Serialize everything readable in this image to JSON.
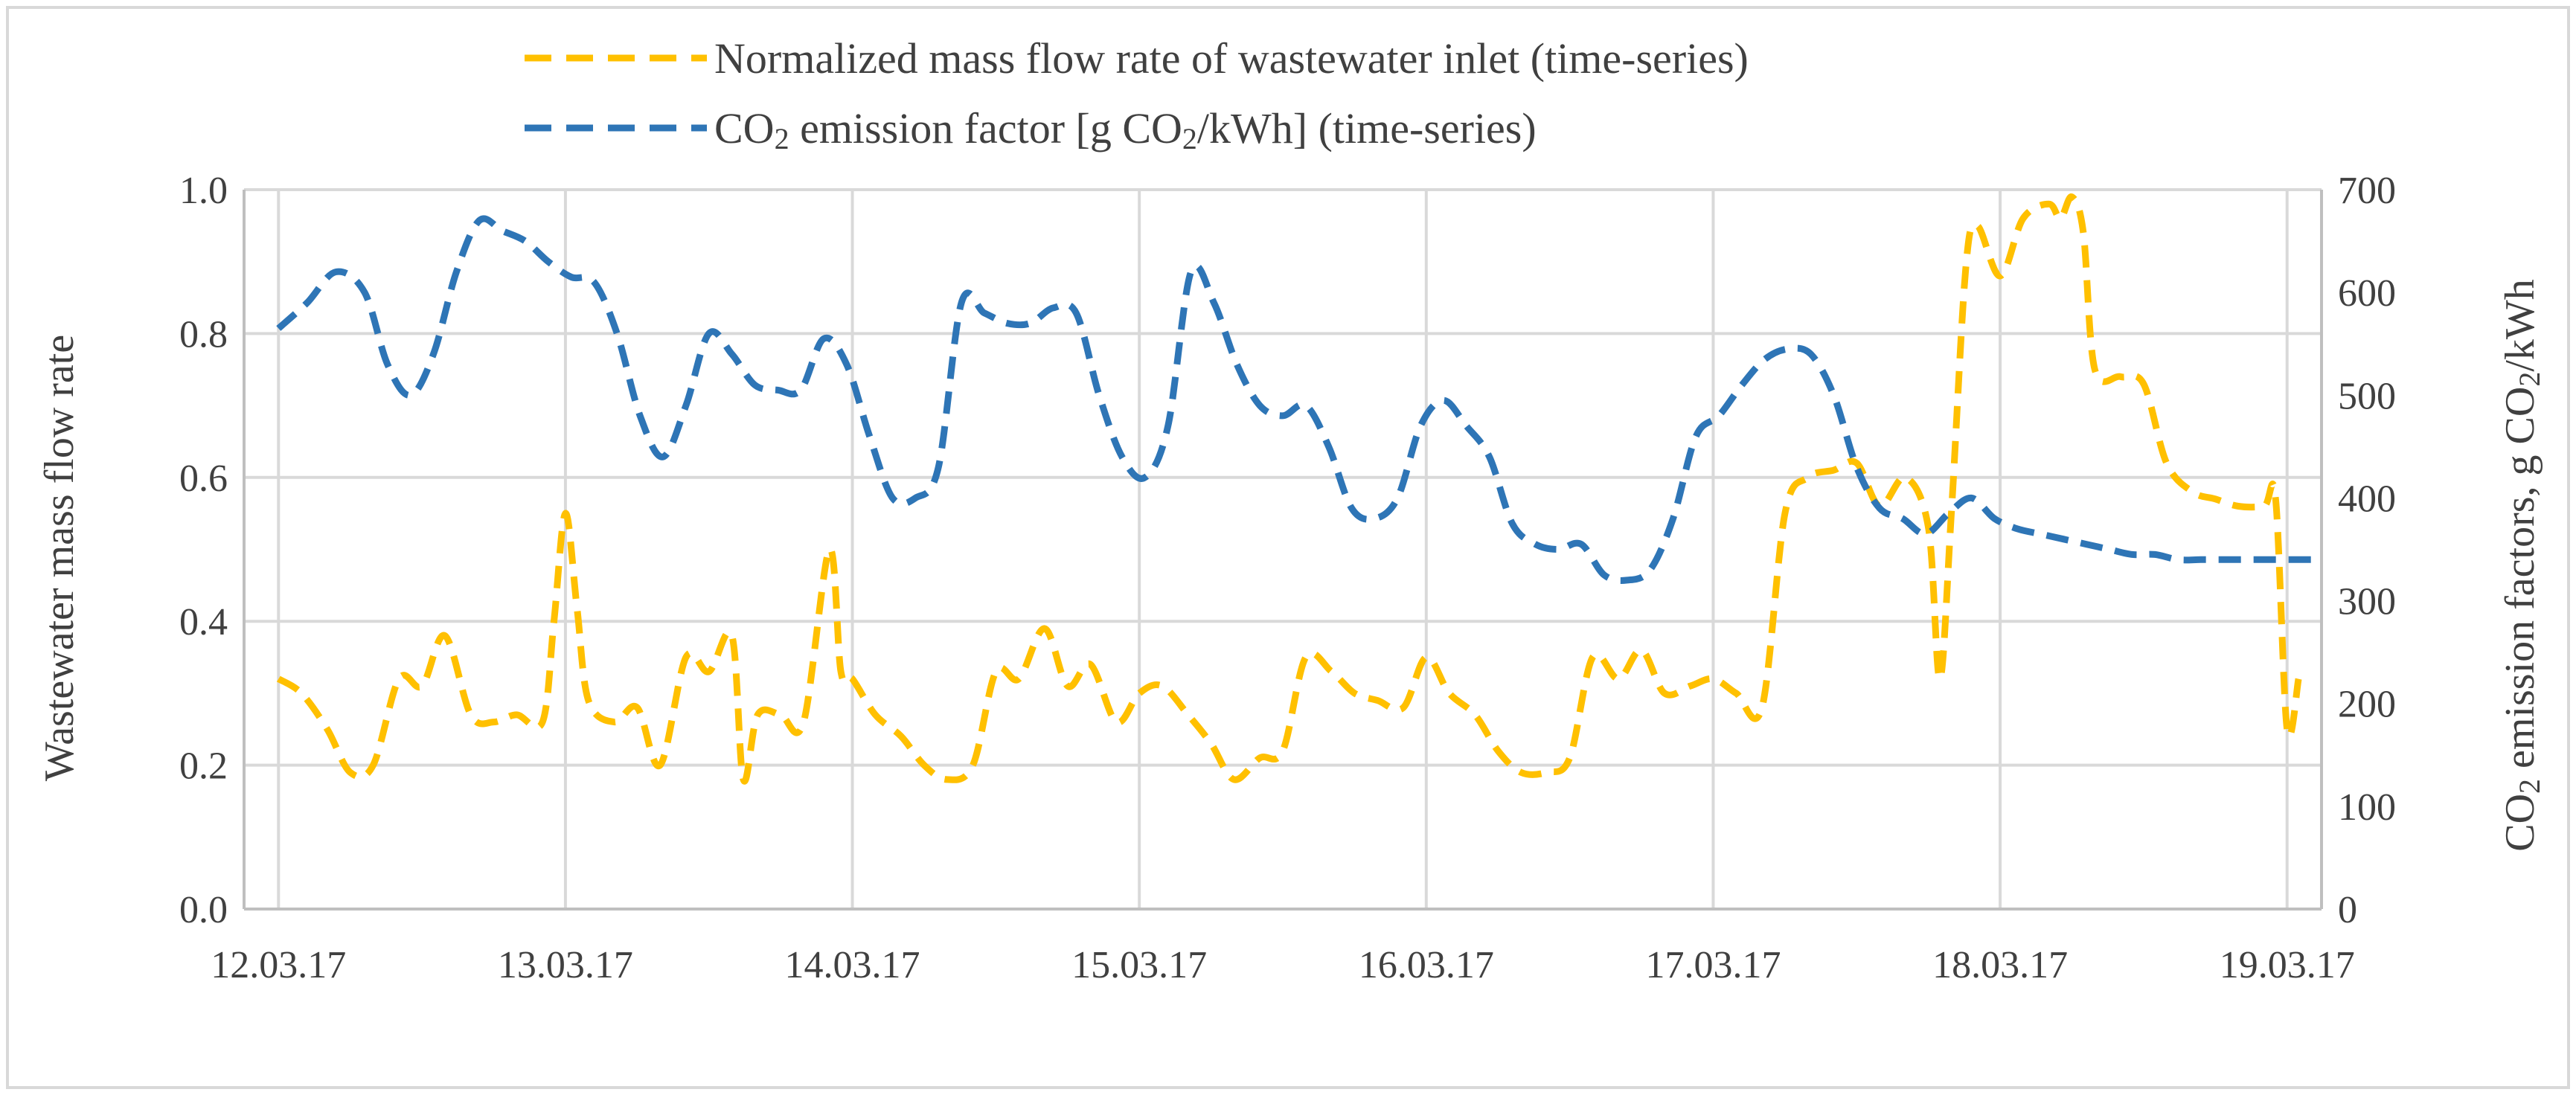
{
  "chart_data": {
    "type": "line",
    "x_start": "12.03.17",
    "x_end": "19.03.17",
    "x_unit": "days since 12.03.17",
    "xticks": [
      {
        "x": 0,
        "label": "12.03.17"
      },
      {
        "x": 1,
        "label": "13.03.17"
      },
      {
        "x": 2,
        "label": "14.03.17"
      },
      {
        "x": 3,
        "label": "15.03.17"
      },
      {
        "x": 4,
        "label": "16.03.17"
      },
      {
        "x": 5,
        "label": "17.03.17"
      },
      {
        "x": 6,
        "label": "18.03.17"
      },
      {
        "x": 7,
        "label": "19.03.17"
      }
    ],
    "x_range": [
      -0.12,
      7.12
    ],
    "y_left": {
      "label": "Wastewater mass flow rate",
      "range": [
        0,
        1.0
      ],
      "ticks": [
        "0.0",
        "0.2",
        "0.4",
        "0.6",
        "0.8",
        "1.0"
      ]
    },
    "y_right": {
      "label_prefix": "CO",
      "label_sub": "2",
      "label_mid": " emission factors, g CO",
      "label_sub2": "2",
      "label_suffix": "/kWh",
      "range": [
        0,
        700
      ],
      "ticks": [
        "0",
        "100",
        "200",
        "300",
        "400",
        "500",
        "600",
        "700"
      ]
    },
    "series": [
      {
        "name": "Normalized mass flow rate of wastewater inlet (time-series)",
        "axis": "left",
        "color": "#FFC000",
        "dash": "dashed",
        "x": [
          0.0,
          0.08,
          0.17,
          0.25,
          0.33,
          0.42,
          0.5,
          0.58,
          0.67,
          0.75,
          0.83,
          0.92,
          0.96,
          1.0,
          1.04,
          1.08,
          1.17,
          1.25,
          1.33,
          1.42,
          1.5,
          1.58,
          1.62,
          1.67,
          1.75,
          1.83,
          1.92,
          1.96,
          2.0,
          2.08,
          2.17,
          2.25,
          2.33,
          2.42,
          2.5,
          2.58,
          2.67,
          2.75,
          2.83,
          2.92,
          3.0,
          3.08,
          3.17,
          3.25,
          3.33,
          3.42,
          3.5,
          3.58,
          3.67,
          3.75,
          3.83,
          3.92,
          4.0,
          4.08,
          4.17,
          4.25,
          4.33,
          4.42,
          4.5,
          4.58,
          4.67,
          4.75,
          4.83,
          4.92,
          5.0,
          5.08,
          5.17,
          5.25,
          5.33,
          5.42,
          5.5,
          5.58,
          5.67,
          5.75,
          5.79,
          5.83,
          5.88,
          5.92,
          6.0,
          6.08,
          6.17,
          6.21,
          6.25,
          6.29,
          6.33,
          6.42,
          6.5,
          6.58,
          6.67,
          6.75,
          6.83,
          6.92,
          6.96,
          7.0,
          7.04
        ],
        "values": [
          0.32,
          0.3,
          0.25,
          0.19,
          0.2,
          0.32,
          0.31,
          0.38,
          0.27,
          0.26,
          0.27,
          0.26,
          0.4,
          0.55,
          0.42,
          0.29,
          0.26,
          0.28,
          0.2,
          0.35,
          0.33,
          0.38,
          0.18,
          0.27,
          0.27,
          0.26,
          0.5,
          0.33,
          0.32,
          0.27,
          0.24,
          0.2,
          0.18,
          0.2,
          0.33,
          0.32,
          0.39,
          0.31,
          0.34,
          0.26,
          0.3,
          0.31,
          0.27,
          0.23,
          0.18,
          0.21,
          0.22,
          0.35,
          0.33,
          0.3,
          0.29,
          0.28,
          0.35,
          0.3,
          0.27,
          0.22,
          0.19,
          0.19,
          0.21,
          0.35,
          0.32,
          0.36,
          0.3,
          0.31,
          0.32,
          0.3,
          0.28,
          0.55,
          0.6,
          0.61,
          0.62,
          0.56,
          0.6,
          0.53,
          0.32,
          0.55,
          0.89,
          0.95,
          0.88,
          0.96,
          0.98,
          0.96,
          0.99,
          0.94,
          0.75,
          0.74,
          0.73,
          0.62,
          0.58,
          0.57,
          0.56,
          0.56,
          0.57,
          0.25,
          0.32
        ]
      },
      {
        "name_prefix": "CO",
        "name_sub": "2",
        "name_mid": " emission  factor [g CO",
        "name_sub2": "2",
        "name_suffix": "/kWh] (time-series)",
        "axis": "right",
        "color": "#2E75B6",
        "dash": "dashed",
        "x": [
          0.0,
          0.1,
          0.2,
          0.3,
          0.38,
          0.46,
          0.54,
          0.62,
          0.7,
          0.78,
          0.86,
          0.94,
          1.02,
          1.1,
          1.18,
          1.26,
          1.34,
          1.42,
          1.5,
          1.58,
          1.66,
          1.74,
          1.82,
          1.9,
          1.98,
          2.06,
          2.14,
          2.22,
          2.3,
          2.38,
          2.46,
          2.54,
          2.62,
          2.7,
          2.78,
          2.86,
          2.94,
          3.02,
          3.1,
          3.18,
          3.26,
          3.34,
          3.42,
          3.5,
          3.58,
          3.66,
          3.74,
          3.82,
          3.9,
          3.98,
          4.06,
          4.14,
          4.22,
          4.3,
          4.38,
          4.46,
          4.54,
          4.62,
          4.7,
          4.78,
          4.86,
          4.94,
          5.02,
          5.1,
          5.18,
          5.26,
          5.34,
          5.42,
          5.5,
          5.58,
          5.66,
          5.74,
          5.82,
          5.9,
          5.98,
          6.06,
          6.14,
          6.22,
          6.3,
          6.38,
          6.46,
          6.54,
          6.62,
          6.7,
          6.78,
          6.86,
          6.94,
          7.02,
          7.1
        ],
        "values": [
          565,
          590,
          620,
          600,
          530,
          500,
          540,
          620,
          670,
          660,
          650,
          630,
          615,
          610,
          560,
          480,
          440,
          490,
          560,
          540,
          510,
          505,
          505,
          555,
          530,
          460,
          400,
          400,
          430,
          590,
          580,
          570,
          570,
          585,
          580,
          500,
          440,
          420,
          470,
          620,
          590,
          530,
          490,
          480,
          490,
          450,
          390,
          380,
          400,
          470,
          495,
          470,
          440,
          375,
          355,
          350,
          355,
          325,
          320,
          330,
          380,
          460,
          480,
          510,
          535,
          545,
          540,
          500,
          430,
          390,
          380,
          365,
          385,
          400,
          380,
          370,
          365,
          360,
          355,
          350,
          345,
          345,
          340,
          340,
          340,
          340,
          340,
          340,
          340
        ]
      }
    ]
  }
}
